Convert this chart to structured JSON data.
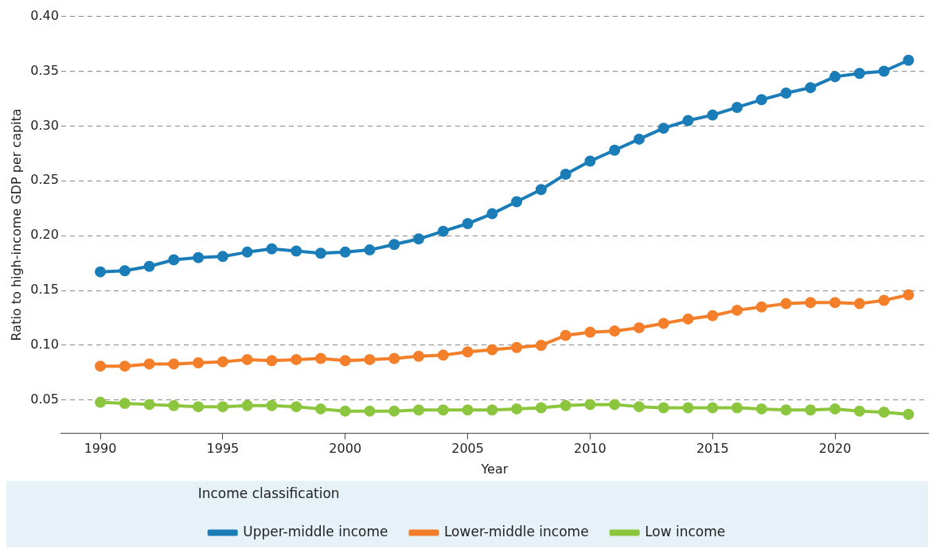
{
  "chart_data": {
    "type": "line",
    "xlabel": "Year",
    "ylabel": "Ratio to high-income GDP per capita",
    "legend_title": "Income classification",
    "legend": "bottom",
    "grid": "y",
    "marker": "circle",
    "line_style": "solid",
    "x": [
      1990,
      1991,
      1992,
      1993,
      1994,
      1995,
      1996,
      1997,
      1998,
      1999,
      2000,
      2001,
      2002,
      2003,
      2004,
      2005,
      2006,
      2007,
      2008,
      2009,
      2010,
      2011,
      2012,
      2013,
      2014,
      2015,
      2016,
      2017,
      2018,
      2019,
      2020,
      2021,
      2022,
      2023
    ],
    "xlim": [
      1988.4,
      2023.8
    ],
    "xticks": [
      1990,
      1995,
      2000,
      2005,
      2010,
      2015,
      2020
    ],
    "ylim": [
      0.02,
      0.4
    ],
    "yticks": [
      {
        "value": 0.05,
        "label": "0.05"
      },
      {
        "value": 0.1,
        "label": "0.10"
      },
      {
        "value": 0.15,
        "label": "0.15"
      },
      {
        "value": 0.2,
        "label": "0.20"
      },
      {
        "value": 0.25,
        "label": "0.25"
      },
      {
        "value": 0.3,
        "label": "0.30"
      },
      {
        "value": 0.35,
        "label": "0.35"
      },
      {
        "value": 0.4,
        "label": "0.40"
      }
    ],
    "series": [
      {
        "name": "Upper-middle income",
        "color": "#1a7db8",
        "values": [
          0.167,
          0.168,
          0.172,
          0.178,
          0.18,
          0.181,
          0.185,
          0.188,
          0.186,
          0.184,
          0.185,
          0.187,
          0.192,
          0.197,
          0.204,
          0.211,
          0.22,
          0.231,
          0.242,
          0.256,
          0.268,
          0.278,
          0.288,
          0.298,
          0.305,
          0.31,
          0.317,
          0.324,
          0.33,
          0.335,
          0.345,
          0.348,
          0.35,
          0.36
        ]
      },
      {
        "name": "Lower-middle income",
        "color": "#f47f2a",
        "values": [
          0.081,
          0.081,
          0.083,
          0.083,
          0.084,
          0.085,
          0.087,
          0.086,
          0.087,
          0.088,
          0.086,
          0.087,
          0.088,
          0.09,
          0.091,
          0.094,
          0.096,
          0.098,
          0.1,
          0.109,
          0.112,
          0.113,
          0.116,
          0.12,
          0.124,
          0.127,
          0.132,
          0.135,
          0.138,
          0.139,
          0.139,
          0.138,
          0.141,
          0.146
        ]
      },
      {
        "name": "Low income",
        "color": "#8cc63f",
        "values": [
          0.048,
          0.047,
          0.046,
          0.045,
          0.044,
          0.044,
          0.045,
          0.045,
          0.044,
          0.042,
          0.04,
          0.04,
          0.04,
          0.041,
          0.041,
          0.041,
          0.041,
          0.042,
          0.043,
          0.045,
          0.046,
          0.046,
          0.044,
          0.043,
          0.043,
          0.043,
          0.043,
          0.042,
          0.041,
          0.041,
          0.042,
          0.04,
          0.039,
          0.037
        ]
      }
    ]
  }
}
